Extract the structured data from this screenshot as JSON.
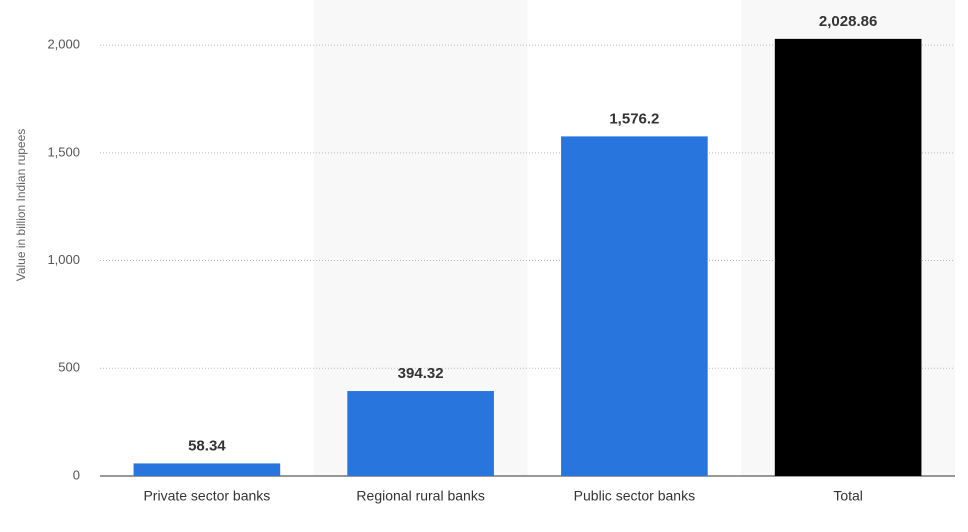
{
  "chart_data": {
    "type": "bar",
    "y_label": "Value in billion Indian rupees",
    "categories": [
      "Private sector banks",
      "Regional rural banks",
      "Public sector banks",
      "Total"
    ],
    "values": [
      58.34,
      394.32,
      1576.2,
      2028.86
    ],
    "value_labels": [
      "58.34",
      "394.32",
      "1,576.2",
      "2,028.86"
    ],
    "colors": [
      "#2876dd",
      "#2876dd",
      "#2876dd",
      "#000000"
    ],
    "ylim": [
      0,
      2200
    ],
    "yticks": [
      0,
      500,
      {
        "value": 1000,
        "label": "1,000"
      },
      {
        "value": 1500,
        "label": "1,500"
      },
      {
        "value": 2000,
        "label": "2,000"
      }
    ],
    "grid": true
  }
}
